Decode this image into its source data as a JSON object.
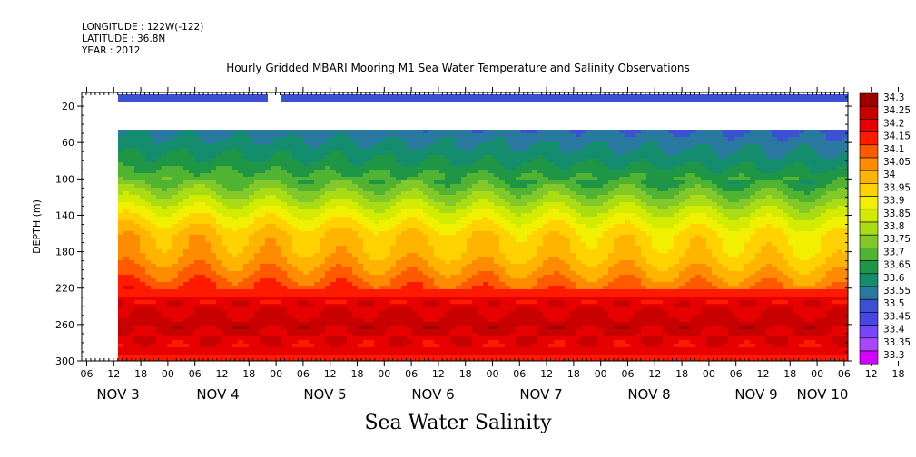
{
  "header": {
    "longitude": "LONGITUDE : 122W(-122)",
    "latitude": "LATITUDE : 36.8N",
    "year": "YEAR : 2012"
  },
  "chart_data": {
    "type": "heatmap",
    "title": "Hourly Gridded MBARI Mooring M1 Sea Water Temperature and Salinity Observations",
    "xlabel": "Sea Water Salinity",
    "ylabel": "DEPTH (m)",
    "x_time_range_hours": [
      0,
      192
    ],
    "x_hour_ticks": [
      "06",
      "12",
      "18",
      "00",
      "06",
      "12",
      "18",
      "00",
      "06",
      "12",
      "18",
      "00",
      "06",
      "12",
      "18",
      "00",
      "06",
      "12",
      "18",
      "00",
      "06",
      "12",
      "18",
      "00",
      "06",
      "12",
      "18",
      "00",
      "06",
      "12",
      "18",
      "00",
      "06"
    ],
    "x_day_labels": [
      "NOV  3",
      "NOV  4",
      "NOV  5",
      "NOV  6",
      "NOV  7",
      "NOV  8",
      "NOV  9",
      "NOV 10"
    ],
    "ylim": [
      300,
      0
    ],
    "y_ticks": [
      20,
      60,
      100,
      140,
      180,
      220,
      260,
      300
    ],
    "colorbar": {
      "levels": [
        "34.3",
        "34.25",
        "34.2",
        "34.15",
        "34.1",
        "34.05",
        "34",
        "33.95",
        "33.9",
        "33.85",
        "33.8",
        "33.75",
        "33.7",
        "33.65",
        "33.6",
        "33.55",
        "33.5",
        "33.45",
        "33.4",
        "33.35",
        "33.3"
      ],
      "colors": [
        "#9e0000",
        "#c80000",
        "#e60000",
        "#ff1a00",
        "#ff5a00",
        "#ff8c00",
        "#ffb400",
        "#ffd200",
        "#f0f000",
        "#d2eb00",
        "#aadc14",
        "#82c828",
        "#50b432",
        "#1e9646",
        "#148c6e",
        "#2878a0",
        "#3c50d2",
        "#4646e6",
        "#7846ff",
        "#aa46ff",
        "#d200ff"
      ]
    },
    "profile": [
      {
        "depth_m": 10,
        "salinity": 33.45,
        "note": "surface sensor band, gap near hour 42"
      },
      {
        "depth_m": 40,
        "salinity": 33.55
      },
      {
        "depth_m": 60,
        "salinity": 33.6
      },
      {
        "depth_m": 80,
        "salinity": 33.65
      },
      {
        "depth_m": 100,
        "salinity": 33.72
      },
      {
        "depth_m": 120,
        "salinity": 33.82
      },
      {
        "depth_m": 140,
        "salinity": 33.92
      },
      {
        "depth_m": 160,
        "salinity": 34.0
      },
      {
        "depth_m": 180,
        "salinity": 34.02
      },
      {
        "depth_m": 200,
        "salinity": 34.08
      },
      {
        "depth_m": 220,
        "salinity": 34.15
      },
      {
        "depth_m": 240,
        "salinity": 34.22
      },
      {
        "depth_m": 260,
        "salinity": 34.25
      },
      {
        "depth_m": 280,
        "salinity": 34.2
      },
      {
        "depth_m": 300,
        "salinity": 34.15
      }
    ],
    "grid": false,
    "legend": "right colorbar"
  }
}
